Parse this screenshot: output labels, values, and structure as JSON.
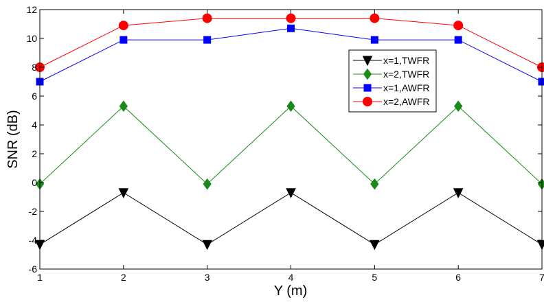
{
  "chart_data": {
    "type": "line",
    "xlabel": "Y (m)",
    "ylabel": "SNR (dB)",
    "xlim": [
      1,
      7
    ],
    "ylim": [
      -6,
      12
    ],
    "xticks": [
      "1",
      "2",
      "3",
      "4",
      "5",
      "6",
      "7"
    ],
    "yticks": [
      "-6",
      "-4",
      "-2",
      "0",
      "2",
      "4",
      "6",
      "8",
      "10",
      "12"
    ],
    "x": [
      1,
      2,
      3,
      4,
      5,
      6,
      7
    ],
    "grid": false,
    "legend_position": "upper-right inside",
    "series": [
      {
        "name": "x=1,TWFR",
        "values": [
          -4.3,
          -0.7,
          -4.3,
          -0.7,
          -4.3,
          -0.7,
          -4.3
        ],
        "color": "#000000",
        "marker": "triangle-down"
      },
      {
        "name": "x=2,TWFR",
        "values": [
          -0.1,
          5.3,
          -0.1,
          5.3,
          -0.1,
          5.3,
          -0.1
        ],
        "color": "#1a8a1a",
        "marker": "diamond"
      },
      {
        "name": "x=1,AWFR",
        "values": [
          7.0,
          9.9,
          9.9,
          10.7,
          9.9,
          9.9,
          7.0
        ],
        "color": "#0000ff",
        "marker": "square"
      },
      {
        "name": "x=2,AWFR",
        "values": [
          8.0,
          10.9,
          11.4,
          11.4,
          11.4,
          10.9,
          8.0
        ],
        "color": "#ff0000",
        "marker": "circle"
      }
    ]
  }
}
